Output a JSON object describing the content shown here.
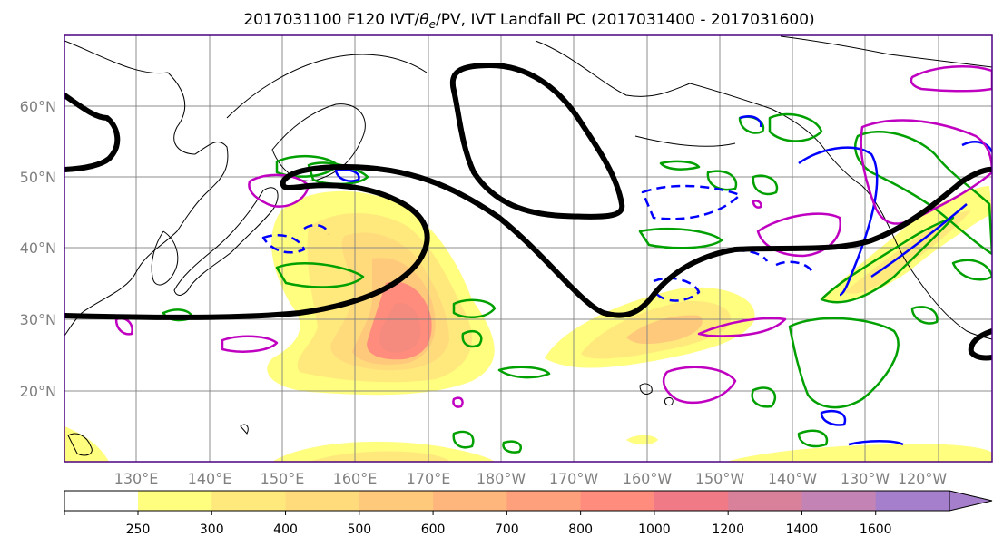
{
  "title_text": "2017031100 F120 IVT/",
  "title_theta": "θ",
  "title_sub": "e",
  "title_rest": "/PV, IVT Landfall PC (2017031400 - 2017031600)",
  "map": {
    "lat_labels": [
      "60°N",
      "50°N",
      "40°N",
      "30°N",
      "20°N"
    ],
    "lon_labels": [
      "130°E",
      "140°E",
      "150°E",
      "160°E",
      "170°E",
      "180°W",
      "170°W",
      "160°W",
      "150°W",
      "140°W",
      "130°W",
      "120°W"
    ]
  },
  "colorbar": {
    "tick_labels": [
      "250",
      "300",
      "400",
      "500",
      "600",
      "700",
      "800",
      "1000",
      "1200",
      "1400",
      "1600"
    ],
    "colors": [
      "#fffe7e",
      "#ffe97c",
      "#ffdb7c",
      "#ffc97c",
      "#ffb67c",
      "#ffa07c",
      "#ff8c7c",
      "#f07a86",
      "#d9809a",
      "#c383b4",
      "#a67fcc"
    ]
  },
  "colors": {
    "jet": "#000000",
    "pv_positive": "#00a000",
    "pv_negative": "#0000ff",
    "theta_e": "#c000c0",
    "frame": "#4b0080"
  }
}
